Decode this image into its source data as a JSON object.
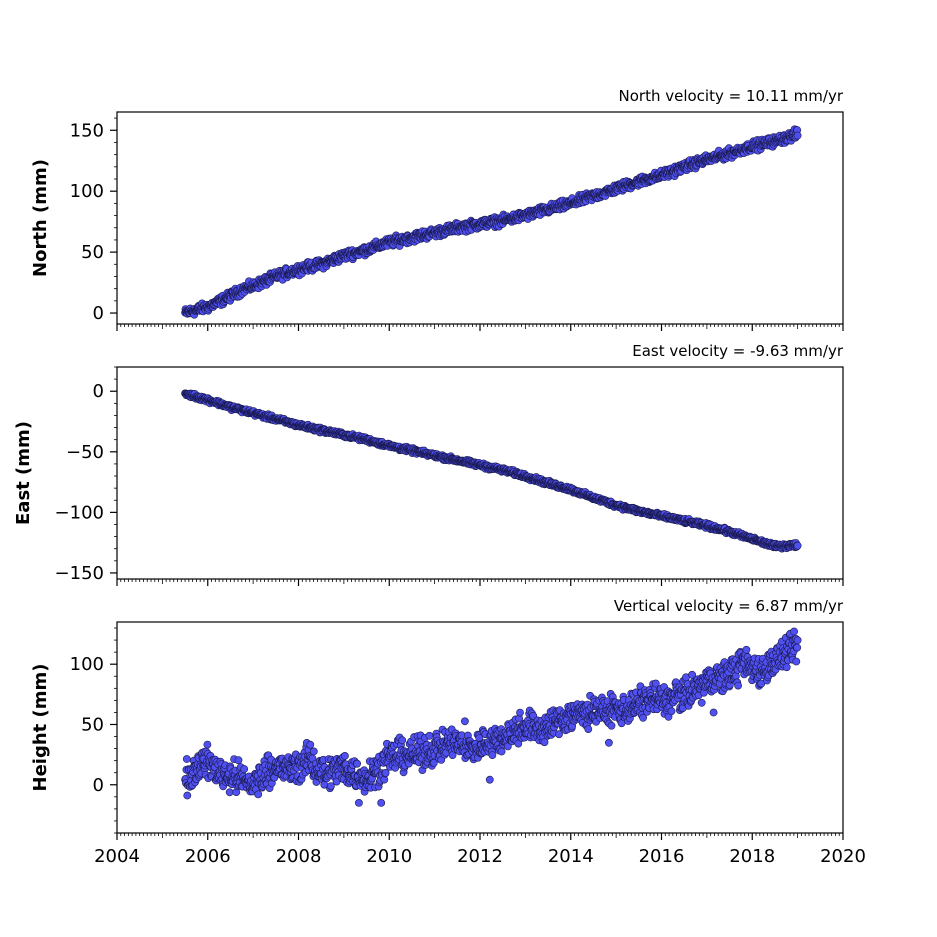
{
  "chart_data": [
    {
      "type": "scatter",
      "title": "North velocity = 10.11 mm/yr",
      "xlabel": "",
      "ylabel": "North (mm)",
      "xlim": [
        2004,
        2020
      ],
      "ylim": [
        -9,
        165
      ],
      "yticks": [
        0,
        50,
        100,
        150
      ],
      "ytick_labels": [
        "0",
        "50",
        "100",
        "150"
      ],
      "grid": false,
      "point_color": "#5050f0",
      "edge_color": "#1a1a50",
      "series": [
        {
          "x": [
            2005.5,
            2005.7,
            2006.0,
            2006.4,
            2006.8,
            2007.0,
            2007.5,
            2008.0,
            2008.5,
            2009.0,
            2009.5,
            2010.0,
            2010.5,
            2011.0,
            2011.5,
            2012.0,
            2012.5,
            2013.0,
            2013.5,
            2014.0,
            2014.5,
            2015.0,
            2015.5,
            2016.0,
            2016.5,
            2017.0,
            2017.5,
            2018.0,
            2018.5,
            2019.0
          ],
          "y": [
            0,
            2,
            5,
            12,
            20,
            22,
            30,
            36,
            40,
            47,
            52,
            58,
            62,
            66,
            70,
            73,
            76,
            80,
            85,
            90,
            96,
            102,
            108,
            113,
            120,
            126,
            131,
            137,
            141,
            147
          ]
        }
      ]
    },
    {
      "type": "scatter",
      "title": "East velocity = -9.63 mm/yr",
      "xlabel": "",
      "ylabel": "East (mm)",
      "xlim": [
        2004,
        2020
      ],
      "ylim": [
        -155,
        20
      ],
      "yticks": [
        0,
        -50,
        -100,
        -150
      ],
      "ytick_labels": [
        "0",
        "−50",
        "−100",
        "−150"
      ],
      "grid": false,
      "point_color": "#5050f0",
      "edge_color": "#1a1a50",
      "series": [
        {
          "x": [
            2005.5,
            2006.0,
            2006.5,
            2007.0,
            2007.5,
            2008.0,
            2008.5,
            2009.0,
            2009.5,
            2010.0,
            2010.5,
            2011.0,
            2011.5,
            2012.0,
            2012.5,
            2013.0,
            2013.5,
            2014.0,
            2014.5,
            2015.0,
            2015.5,
            2016.0,
            2016.5,
            2017.0,
            2017.5,
            2018.0,
            2018.5,
            2019.0
          ],
          "y": [
            -2,
            -7,
            -13,
            -18,
            -23,
            -28,
            -32,
            -36,
            -40,
            -45,
            -49,
            -53,
            -57,
            -61,
            -65,
            -70,
            -76,
            -81,
            -88,
            -94,
            -99,
            -103,
            -107,
            -111,
            -116,
            -122,
            -128,
            -127
          ]
        }
      ]
    },
    {
      "type": "scatter",
      "title": "Vertical velocity = 6.87 mm/yr",
      "xlabel": "",
      "ylabel": "Height (mm)",
      "xlim": [
        2004,
        2020
      ],
      "ylim": [
        -40,
        135
      ],
      "yticks": [
        0,
        50,
        100
      ],
      "ytick_labels": [
        "0",
        "50",
        "100"
      ],
      "xticks": [
        2004,
        2006,
        2008,
        2010,
        2012,
        2014,
        2016,
        2018,
        2020
      ],
      "xtick_labels": [
        "2004",
        "2006",
        "2008",
        "2010",
        "2012",
        "2014",
        "2016",
        "2018",
        "2020"
      ],
      "grid": false,
      "point_color": "#5050f0",
      "edge_color": "#1a1a50",
      "series": [
        {
          "x": [
            2005.5,
            2005.9,
            2006.3,
            2006.7,
            2007.0,
            2007.4,
            2007.8,
            2008.2,
            2008.6,
            2009.0,
            2009.4,
            2009.8,
            2010.2,
            2010.6,
            2011.0,
            2011.4,
            2011.8,
            2012.2,
            2012.6,
            2013.0,
            2013.4,
            2013.8,
            2014.2,
            2014.6,
            2015.0,
            2015.4,
            2015.8,
            2016.2,
            2016.6,
            2017.0,
            2017.4,
            2017.8,
            2018.2,
            2018.6,
            2019.0
          ],
          "y": [
            5,
            20,
            10,
            5,
            0,
            15,
            12,
            20,
            10,
            15,
            5,
            15,
            25,
            25,
            30,
            35,
            30,
            35,
            40,
            50,
            45,
            55,
            60,
            60,
            62,
            65,
            72,
            70,
            75,
            85,
            90,
            100,
            95,
            105,
            115
          ]
        }
      ]
    }
  ]
}
